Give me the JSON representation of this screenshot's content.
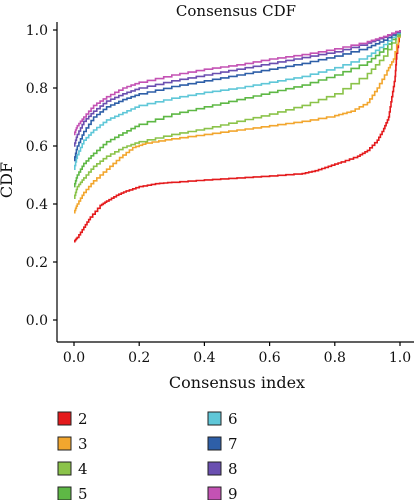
{
  "chart_data": {
    "type": "line",
    "title": "Consensus CDF",
    "xlabel": "Consensus index",
    "ylabel": "CDF",
    "xlim": [
      0,
      1
    ],
    "ylim": [
      0,
      1
    ],
    "x_ticks": [
      0.0,
      0.2,
      0.4,
      0.6,
      0.8,
      1.0
    ],
    "y_ticks": [
      0.0,
      0.2,
      0.4,
      0.6,
      0.8,
      1.0
    ],
    "x_tick_labels": [
      "0.0",
      "0.2",
      "0.4",
      "0.6",
      "0.8",
      "1.0"
    ],
    "y_tick_labels": [
      "0.0",
      "0.2",
      "0.4",
      "0.6",
      "0.8",
      "1.0"
    ],
    "grid": false,
    "legend_position": "bottom",
    "series": [
      {
        "name": "2",
        "color": "#e41a1c",
        "points": [
          [
            0.0,
            0.27
          ],
          [
            0.01,
            0.285
          ],
          [
            0.03,
            0.32
          ],
          [
            0.05,
            0.355
          ],
          [
            0.08,
            0.395
          ],
          [
            0.1,
            0.41
          ],
          [
            0.13,
            0.43
          ],
          [
            0.16,
            0.445
          ],
          [
            0.2,
            0.46
          ],
          [
            0.25,
            0.47
          ],
          [
            0.3,
            0.475
          ],
          [
            0.4,
            0.483
          ],
          [
            0.5,
            0.49
          ],
          [
            0.6,
            0.497
          ],
          [
            0.7,
            0.505
          ],
          [
            0.74,
            0.515
          ],
          [
            0.78,
            0.53
          ],
          [
            0.82,
            0.545
          ],
          [
            0.87,
            0.565
          ],
          [
            0.9,
            0.585
          ],
          [
            0.93,
            0.62
          ],
          [
            0.95,
            0.66
          ],
          [
            0.965,
            0.7
          ],
          [
            0.975,
            0.77
          ],
          [
            0.985,
            0.84
          ],
          [
            0.99,
            0.92
          ],
          [
            1.0,
            1.0
          ]
        ]
      },
      {
        "name": "3",
        "color": "#f2a62e",
        "points": [
          [
            0.0,
            0.37
          ],
          [
            0.01,
            0.4
          ],
          [
            0.03,
            0.44
          ],
          [
            0.06,
            0.48
          ],
          [
            0.1,
            0.52
          ],
          [
            0.14,
            0.56
          ],
          [
            0.18,
            0.595
          ],
          [
            0.22,
            0.61
          ],
          [
            0.3,
            0.625
          ],
          [
            0.4,
            0.64
          ],
          [
            0.5,
            0.655
          ],
          [
            0.6,
            0.67
          ],
          [
            0.7,
            0.685
          ],
          [
            0.8,
            0.705
          ],
          [
            0.85,
            0.72
          ],
          [
            0.9,
            0.75
          ],
          [
            0.93,
            0.8
          ],
          [
            0.96,
            0.86
          ],
          [
            0.98,
            0.9
          ],
          [
            1.0,
            1.0
          ]
        ]
      },
      {
        "name": "4",
        "color": "#8bc34a",
        "points": [
          [
            0.0,
            0.42
          ],
          [
            0.01,
            0.46
          ],
          [
            0.03,
            0.49
          ],
          [
            0.06,
            0.53
          ],
          [
            0.1,
            0.565
          ],
          [
            0.15,
            0.595
          ],
          [
            0.2,
            0.615
          ],
          [
            0.3,
            0.64
          ],
          [
            0.4,
            0.66
          ],
          [
            0.5,
            0.685
          ],
          [
            0.6,
            0.71
          ],
          [
            0.7,
            0.74
          ],
          [
            0.8,
            0.78
          ],
          [
            0.9,
            0.85
          ],
          [
            0.95,
            0.91
          ],
          [
            1.0,
            1.0
          ]
        ]
      },
      {
        "name": "5",
        "color": "#5eb845",
        "points": [
          [
            0.0,
            0.46
          ],
          [
            0.01,
            0.5
          ],
          [
            0.03,
            0.54
          ],
          [
            0.06,
            0.575
          ],
          [
            0.1,
            0.615
          ],
          [
            0.15,
            0.645
          ],
          [
            0.2,
            0.675
          ],
          [
            0.3,
            0.71
          ],
          [
            0.4,
            0.735
          ],
          [
            0.5,
            0.76
          ],
          [
            0.6,
            0.785
          ],
          [
            0.7,
            0.81
          ],
          [
            0.8,
            0.845
          ],
          [
            0.9,
            0.89
          ],
          [
            0.95,
            0.935
          ],
          [
            1.0,
            1.0
          ]
        ]
      },
      {
        "name": "6",
        "color": "#5fc7d8",
        "points": [
          [
            0.0,
            0.52
          ],
          [
            0.01,
            0.57
          ],
          [
            0.03,
            0.62
          ],
          [
            0.06,
            0.655
          ],
          [
            0.1,
            0.69
          ],
          [
            0.15,
            0.715
          ],
          [
            0.2,
            0.74
          ],
          [
            0.3,
            0.765
          ],
          [
            0.4,
            0.785
          ],
          [
            0.5,
            0.8
          ],
          [
            0.6,
            0.82
          ],
          [
            0.7,
            0.84
          ],
          [
            0.8,
            0.87
          ],
          [
            0.9,
            0.91
          ],
          [
            0.95,
            0.95
          ],
          [
            1.0,
            1.0
          ]
        ]
      },
      {
        "name": "7",
        "color": "#2e5fa8",
        "points": [
          [
            0.0,
            0.55
          ],
          [
            0.01,
            0.6
          ],
          [
            0.03,
            0.65
          ],
          [
            0.06,
            0.7
          ],
          [
            0.1,
            0.735
          ],
          [
            0.15,
            0.76
          ],
          [
            0.2,
            0.78
          ],
          [
            0.3,
            0.805
          ],
          [
            0.4,
            0.825
          ],
          [
            0.5,
            0.845
          ],
          [
            0.6,
            0.865
          ],
          [
            0.7,
            0.885
          ],
          [
            0.8,
            0.91
          ],
          [
            0.9,
            0.94
          ],
          [
            0.95,
            0.965
          ],
          [
            1.0,
            1.0
          ]
        ]
      },
      {
        "name": "8",
        "color": "#6a4fb0",
        "points": [
          [
            0.0,
            0.6
          ],
          [
            0.01,
            0.64
          ],
          [
            0.03,
            0.685
          ],
          [
            0.06,
            0.72
          ],
          [
            0.1,
            0.755
          ],
          [
            0.15,
            0.78
          ],
          [
            0.2,
            0.8
          ],
          [
            0.3,
            0.825
          ],
          [
            0.4,
            0.845
          ],
          [
            0.5,
            0.865
          ],
          [
            0.6,
            0.885
          ],
          [
            0.7,
            0.905
          ],
          [
            0.8,
            0.925
          ],
          [
            0.9,
            0.955
          ],
          [
            0.95,
            0.975
          ],
          [
            1.0,
            1.0
          ]
        ]
      },
      {
        "name": "9",
        "color": "#c452b4",
        "points": [
          [
            0.0,
            0.64
          ],
          [
            0.01,
            0.67
          ],
          [
            0.03,
            0.7
          ],
          [
            0.06,
            0.74
          ],
          [
            0.1,
            0.77
          ],
          [
            0.15,
            0.8
          ],
          [
            0.2,
            0.82
          ],
          [
            0.3,
            0.845
          ],
          [
            0.4,
            0.865
          ],
          [
            0.5,
            0.88
          ],
          [
            0.6,
            0.9
          ],
          [
            0.7,
            0.915
          ],
          [
            0.8,
            0.935
          ],
          [
            0.9,
            0.96
          ],
          [
            0.95,
            0.978
          ],
          [
            1.0,
            1.0
          ]
        ]
      }
    ]
  }
}
